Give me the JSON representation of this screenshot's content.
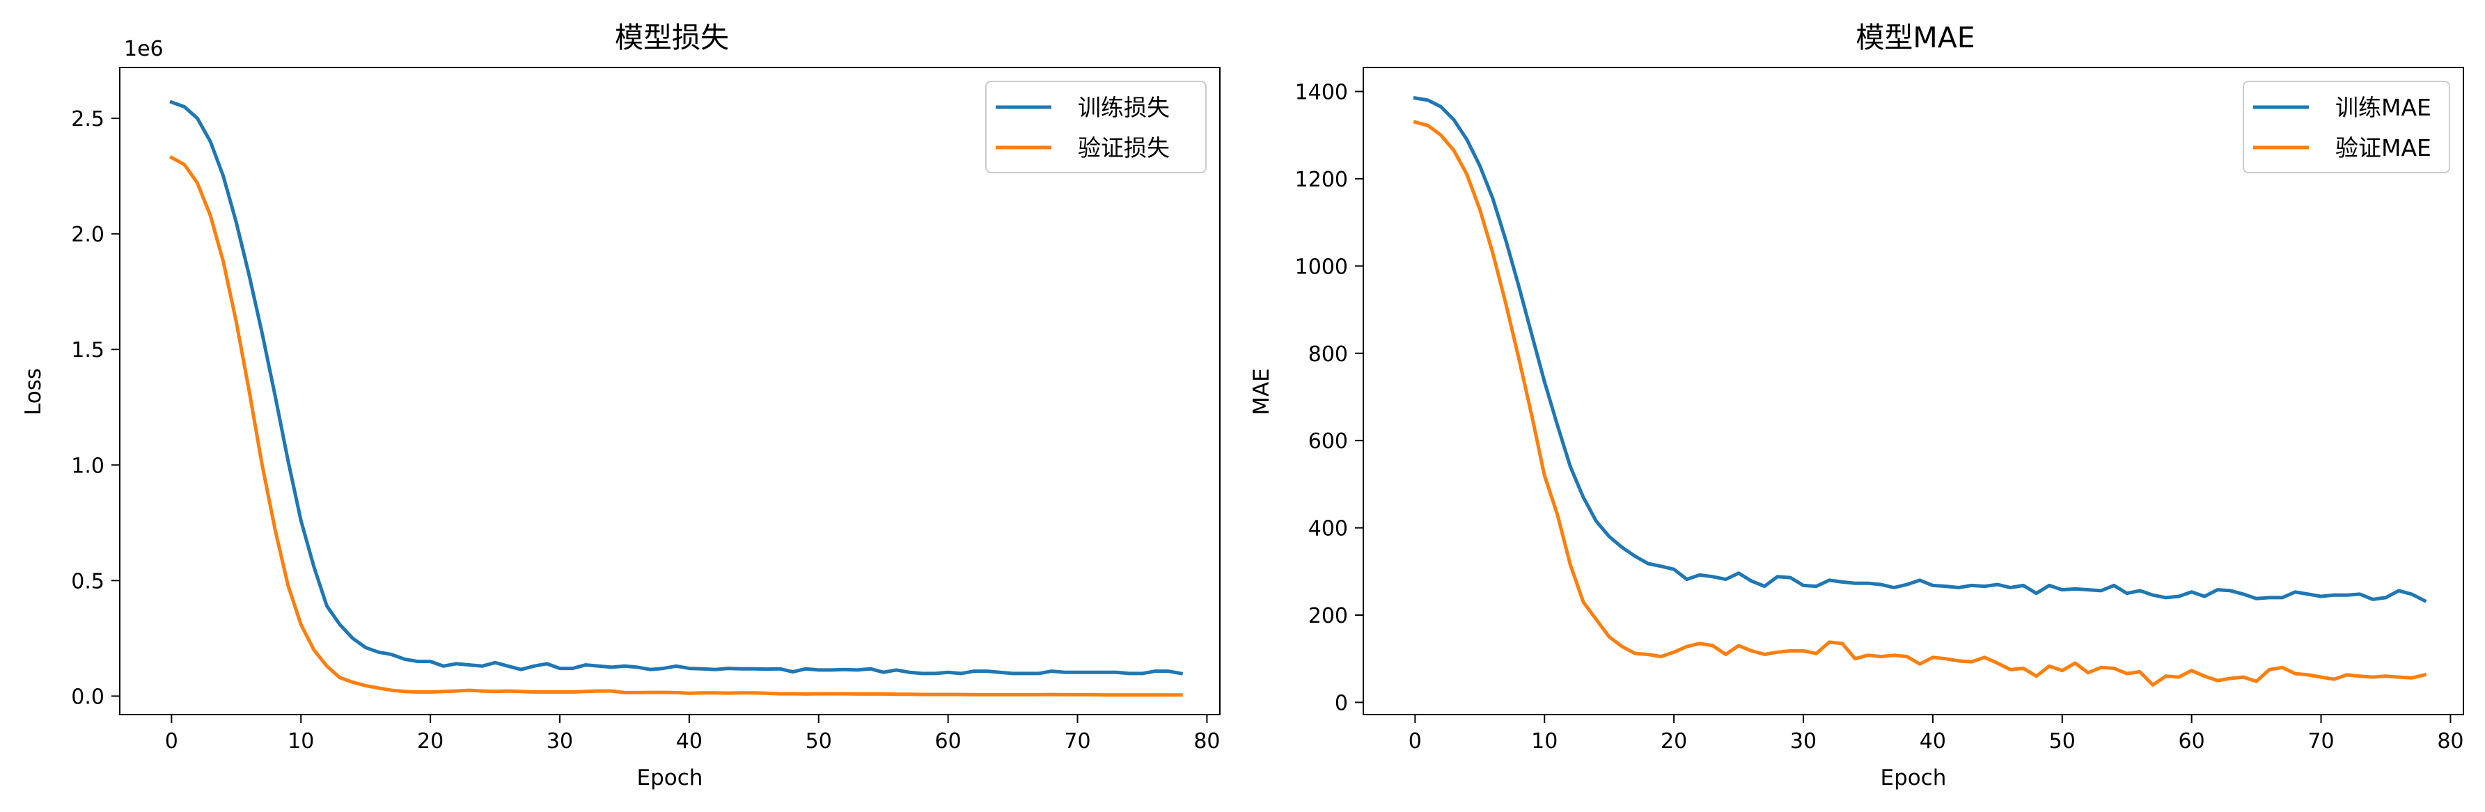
{
  "chart_data": [
    {
      "type": "line",
      "title": "模型损失",
      "xlabel": "Epoch",
      "ylabel": "Loss",
      "offset_label": "1e6",
      "xlim": [
        -4,
        81
      ],
      "ylim": [
        -0.08,
        2.72
      ],
      "xticks": [
        0,
        10,
        20,
        30,
        40,
        50,
        60,
        70,
        80
      ],
      "xtick_labels": [
        "0",
        "10",
        "20",
        "30",
        "40",
        "50",
        "60",
        "70",
        "80"
      ],
      "yticks": [
        0.0,
        0.5,
        1.0,
        1.5,
        2.0,
        2.5
      ],
      "ytick_labels": [
        "0.0",
        "0.5",
        "1.0",
        "1.5",
        "2.0",
        "2.5"
      ],
      "legend_position": "top-right",
      "grid": false,
      "series": [
        {
          "name": "训练损失",
          "color": "#1f77b4",
          "x": [
            0,
            1,
            2,
            3,
            4,
            5,
            6,
            7,
            8,
            9,
            10,
            11,
            12,
            13,
            14,
            15,
            16,
            17,
            18,
            19,
            20,
            21,
            22,
            23,
            24,
            25,
            26,
            27,
            28,
            29,
            30,
            31,
            32,
            33,
            34,
            35,
            36,
            37,
            38,
            39,
            40,
            41,
            42,
            43,
            44,
            45,
            46,
            47,
            48,
            49,
            50,
            51,
            52,
            53,
            54,
            55,
            56,
            57,
            58,
            59,
            60,
            61,
            62,
            63,
            64,
            65,
            66,
            67,
            68,
            69,
            70,
            71,
            72,
            73,
            74,
            75,
            76,
            77,
            78
          ],
          "values": [
            2.57,
            2.55,
            2.5,
            2.4,
            2.25,
            2.05,
            1.82,
            1.57,
            1.3,
            1.02,
            0.76,
            0.56,
            0.39,
            0.31,
            0.25,
            0.21,
            0.19,
            0.18,
            0.16,
            0.15,
            0.15,
            0.13,
            0.14,
            0.135,
            0.13,
            0.145,
            0.13,
            0.115,
            0.13,
            0.14,
            0.12,
            0.12,
            0.135,
            0.13,
            0.125,
            0.13,
            0.125,
            0.115,
            0.12,
            0.13,
            0.12,
            0.118,
            0.115,
            0.12,
            0.118,
            0.118,
            0.117,
            0.118,
            0.105,
            0.118,
            0.113,
            0.113,
            0.115,
            0.113,
            0.118,
            0.103,
            0.113,
            0.103,
            0.098,
            0.098,
            0.103,
            0.098,
            0.108,
            0.108,
            0.103,
            0.098,
            0.098,
            0.098,
            0.108,
            0.103,
            0.103,
            0.103,
            0.103,
            0.103,
            0.098,
            0.098,
            0.108,
            0.108,
            0.098
          ]
        },
        {
          "name": "验证损失",
          "color": "#ff7f0e",
          "x": [
            0,
            1,
            2,
            3,
            4,
            5,
            6,
            7,
            8,
            9,
            10,
            11,
            12,
            13,
            14,
            15,
            16,
            17,
            18,
            19,
            20,
            21,
            22,
            23,
            24,
            25,
            26,
            27,
            28,
            29,
            30,
            31,
            32,
            33,
            34,
            35,
            36,
            37,
            38,
            39,
            40,
            41,
            42,
            43,
            44,
            45,
            46,
            47,
            48,
            49,
            50,
            51,
            52,
            53,
            54,
            55,
            56,
            57,
            58,
            59,
            60,
            61,
            62,
            63,
            64,
            65,
            66,
            67,
            68,
            69,
            70,
            71,
            72,
            73,
            74,
            75,
            76,
            77,
            78
          ],
          "values": [
            2.33,
            2.3,
            2.22,
            2.08,
            1.88,
            1.62,
            1.32,
            1.0,
            0.72,
            0.48,
            0.31,
            0.2,
            0.13,
            0.08,
            0.06,
            0.045,
            0.035,
            0.025,
            0.02,
            0.018,
            0.018,
            0.02,
            0.022,
            0.025,
            0.022,
            0.02,
            0.022,
            0.02,
            0.018,
            0.018,
            0.018,
            0.018,
            0.02,
            0.022,
            0.022,
            0.015,
            0.015,
            0.016,
            0.016,
            0.015,
            0.012,
            0.014,
            0.014,
            0.013,
            0.014,
            0.014,
            0.012,
            0.01,
            0.01,
            0.009,
            0.01,
            0.01,
            0.01,
            0.009,
            0.009,
            0.009,
            0.008,
            0.008,
            0.007,
            0.007,
            0.007,
            0.007,
            0.006,
            0.006,
            0.006,
            0.006,
            0.006,
            0.006,
            0.007,
            0.006,
            0.006,
            0.006,
            0.005,
            0.005,
            0.005,
            0.005,
            0.005,
            0.005,
            0.005
          ]
        }
      ]
    },
    {
      "type": "line",
      "title": "模型MAE",
      "xlabel": "Epoch",
      "ylabel": "MAE",
      "xlim": [
        -4,
        81
      ],
      "ylim": [
        -28,
        1455
      ],
      "xticks": [
        0,
        10,
        20,
        30,
        40,
        50,
        60,
        70,
        80
      ],
      "xtick_labels": [
        "0",
        "10",
        "20",
        "30",
        "40",
        "50",
        "60",
        "70",
        "80"
      ],
      "yticks": [
        0,
        200,
        400,
        600,
        800,
        1000,
        1200,
        1400
      ],
      "ytick_labels": [
        "0",
        "200",
        "400",
        "600",
        "800",
        "1000",
        "1200",
        "1400"
      ],
      "legend_position": "top-right",
      "grid": false,
      "series": [
        {
          "name": "训练MAE",
          "color": "#1f77b4",
          "x": [
            0,
            1,
            2,
            3,
            4,
            5,
            6,
            7,
            8,
            9,
            10,
            11,
            12,
            13,
            14,
            15,
            16,
            17,
            18,
            19,
            20,
            21,
            22,
            23,
            24,
            25,
            26,
            27,
            28,
            29,
            30,
            31,
            32,
            33,
            34,
            35,
            36,
            37,
            38,
            39,
            40,
            41,
            42,
            43,
            44,
            45,
            46,
            47,
            48,
            49,
            50,
            51,
            52,
            53,
            54,
            55,
            56,
            57,
            58,
            59,
            60,
            61,
            62,
            63,
            64,
            65,
            66,
            67,
            68,
            69,
            70,
            71,
            72,
            73,
            74,
            75,
            76,
            77,
            78
          ],
          "values": [
            1385,
            1380,
            1365,
            1335,
            1290,
            1230,
            1155,
            1060,
            955,
            845,
            735,
            635,
            540,
            470,
            415,
            380,
            355,
            335,
            318,
            312,
            305,
            282,
            292,
            288,
            282,
            296,
            278,
            266,
            288,
            286,
            268,
            266,
            280,
            276,
            273,
            273,
            270,
            263,
            270,
            280,
            268,
            266,
            263,
            268,
            266,
            270,
            263,
            268,
            250,
            268,
            258,
            260,
            258,
            256,
            268,
            250,
            256,
            246,
            240,
            243,
            253,
            243,
            258,
            256,
            248,
            238,
            240,
            240,
            253,
            248,
            243,
            246,
            246,
            248,
            236,
            240,
            256,
            248,
            233
          ]
        },
        {
          "name": "验证MAE",
          "color": "#ff7f0e",
          "x": [
            0,
            1,
            2,
            3,
            4,
            5,
            6,
            7,
            8,
            9,
            10,
            11,
            12,
            13,
            14,
            15,
            16,
            17,
            18,
            19,
            20,
            21,
            22,
            23,
            24,
            25,
            26,
            27,
            28,
            29,
            30,
            31,
            32,
            33,
            34,
            35,
            36,
            37,
            38,
            39,
            40,
            41,
            42,
            43,
            44,
            45,
            46,
            47,
            48,
            49,
            50,
            51,
            52,
            53,
            54,
            55,
            56,
            57,
            58,
            59,
            60,
            61,
            62,
            63,
            64,
            65,
            66,
            67,
            68,
            69,
            70,
            71,
            72,
            73,
            74,
            75,
            76,
            77,
            78
          ],
          "values": [
            1330,
            1322,
            1300,
            1265,
            1210,
            1130,
            1030,
            915,
            790,
            660,
            520,
            430,
            315,
            230,
            190,
            150,
            128,
            112,
            110,
            105,
            115,
            128,
            135,
            130,
            110,
            130,
            118,
            110,
            115,
            118,
            118,
            112,
            138,
            135,
            100,
            108,
            105,
            108,
            105,
            88,
            103,
            100,
            95,
            93,
            103,
            90,
            75,
            78,
            60,
            83,
            73,
            90,
            68,
            80,
            78,
            66,
            70,
            40,
            60,
            58,
            73,
            60,
            50,
            55,
            58,
            48,
            75,
            80,
            66,
            63,
            58,
            53,
            63,
            60,
            58,
            60,
            58,
            56,
            63
          ]
        }
      ]
    }
  ]
}
